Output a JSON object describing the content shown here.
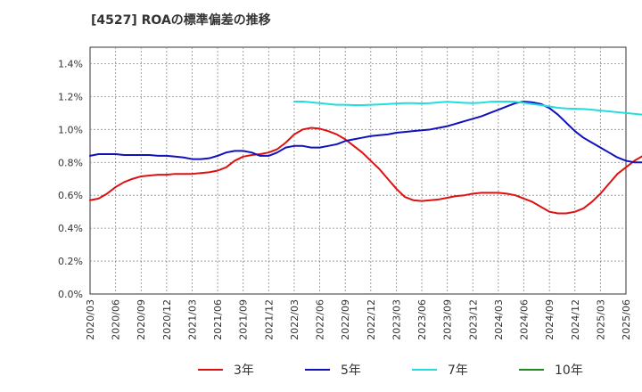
{
  "chart_data": {
    "type": "line",
    "title": "[4527]  ROAの標準偏差の推移",
    "xlabel": "",
    "ylabel": "",
    "ylim": [
      0,
      1.5
    ],
    "yticks": [
      0,
      0.2,
      0.4,
      0.6,
      0.8,
      1.0,
      1.2,
      1.4
    ],
    "ytick_labels": [
      "0.0%",
      "0.2%",
      "0.4%",
      "0.6%",
      "0.8%",
      "1.0%",
      "1.2%",
      "1.4%"
    ],
    "x_tick_labels": [
      "2020/03",
      "2020/06",
      "2020/09",
      "2020/12",
      "2021/03",
      "2021/06",
      "2021/09",
      "2021/12",
      "2022/03",
      "2022/06",
      "2022/09",
      "2022/12",
      "2023/03",
      "2023/06",
      "2023/09",
      "2023/12",
      "2024/03",
      "2024/06",
      "2024/09",
      "2024/12",
      "2025/03",
      "2025/06"
    ],
    "grid": true,
    "legend_position": "bottom",
    "series": [
      {
        "name": "3年",
        "color": "#dd1111",
        "start_index": 0,
        "values": [
          0.57,
          0.58,
          0.61,
          0.65,
          0.68,
          0.7,
          0.715,
          0.72,
          0.725,
          0.725,
          0.73,
          0.73,
          0.73,
          0.735,
          0.74,
          0.75,
          0.77,
          0.81,
          0.835,
          0.845,
          0.85,
          0.86,
          0.88,
          0.92,
          0.97,
          1.0,
          1.01,
          1.005,
          0.99,
          0.97,
          0.94,
          0.9,
          0.86,
          0.81,
          0.76,
          0.7,
          0.64,
          0.59,
          0.57,
          0.565,
          0.57,
          0.575,
          0.585,
          0.595,
          0.6,
          0.61,
          0.615,
          0.615,
          0.615,
          0.61,
          0.6,
          0.58,
          0.56,
          0.53,
          0.5,
          0.49,
          0.49,
          0.5,
          0.52,
          0.56,
          0.61,
          0.67,
          0.73,
          0.77,
          0.81,
          0.84,
          0.87
        ]
      },
      {
        "name": "5年",
        "color": "#1111bb",
        "start_index": 0,
        "values": [
          0.84,
          0.85,
          0.85,
          0.85,
          0.845,
          0.845,
          0.845,
          0.845,
          0.84,
          0.84,
          0.835,
          0.83,
          0.82,
          0.82,
          0.825,
          0.84,
          0.86,
          0.87,
          0.87,
          0.86,
          0.84,
          0.84,
          0.86,
          0.89,
          0.9,
          0.9,
          0.89,
          0.89,
          0.9,
          0.91,
          0.93,
          0.94,
          0.95,
          0.96,
          0.965,
          0.97,
          0.98,
          0.985,
          0.99,
          0.995,
          1.0,
          1.01,
          1.02,
          1.035,
          1.05,
          1.065,
          1.08,
          1.1,
          1.12,
          1.14,
          1.16,
          1.17,
          1.165,
          1.155,
          1.13,
          1.09,
          1.04,
          0.99,
          0.95,
          0.92,
          0.89,
          0.86,
          0.83,
          0.81,
          0.8,
          0.8,
          0.805
        ]
      },
      {
        "name": "7年",
        "color": "#22dddd",
        "start_index": 24,
        "values": [
          1.17,
          1.17,
          1.165,
          1.16,
          1.155,
          1.15,
          1.15,
          1.148,
          1.148,
          1.15,
          1.152,
          1.155,
          1.158,
          1.16,
          1.16,
          1.158,
          1.16,
          1.165,
          1.168,
          1.165,
          1.162,
          1.16,
          1.163,
          1.168,
          1.17,
          1.17,
          1.168,
          1.162,
          1.155,
          1.148,
          1.14,
          1.132,
          1.128,
          1.126,
          1.124,
          1.12,
          1.115,
          1.11,
          1.105,
          1.1,
          1.095,
          1.09,
          1.09
        ]
      },
      {
        "name": "10年",
        "color": "#228822",
        "start_index": 0,
        "values": []
      }
    ]
  }
}
